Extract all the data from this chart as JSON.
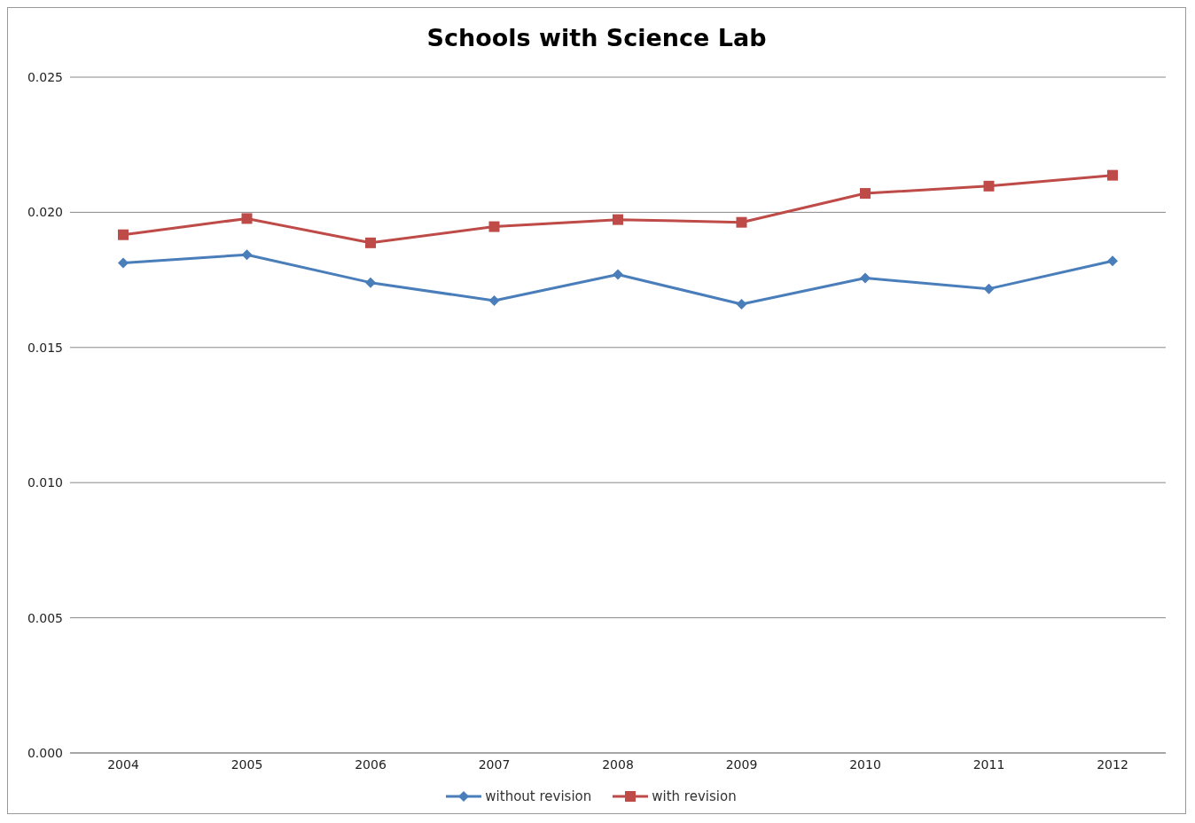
{
  "chart_data": {
    "type": "line",
    "title": "Schools with Science Lab",
    "categories": [
      "2004",
      "2005",
      "2006",
      "2007",
      "2008",
      "2009",
      "2010",
      "2011",
      "2012"
    ],
    "series": [
      {
        "name": "without revision",
        "color": "#4a7ebb",
        "marker": "diamond",
        "values": [
          0.01813,
          0.01843,
          0.0174,
          0.01673,
          0.0177,
          0.0166,
          0.01757,
          0.01717,
          0.0182
        ]
      },
      {
        "name": "with revision",
        "color": "#be4b48",
        "marker": "square",
        "values": [
          0.01917,
          0.01977,
          0.01887,
          0.01947,
          0.01973,
          0.01963,
          0.0207,
          0.02097,
          0.02137
        ]
      }
    ],
    "ylim": [
      0,
      0.025
    ],
    "yticks": [
      {
        "value": 0,
        "label": "0.000"
      },
      {
        "value": 0.005,
        "label": "0.005"
      },
      {
        "value": 0.01,
        "label": "0.010"
      },
      {
        "value": 0.015,
        "label": "0.015"
      },
      {
        "value": 0.02,
        "label": "0.020"
      },
      {
        "value": 0.025,
        "label": "0.025"
      }
    ],
    "grid": "y",
    "legend": "bottom"
  }
}
